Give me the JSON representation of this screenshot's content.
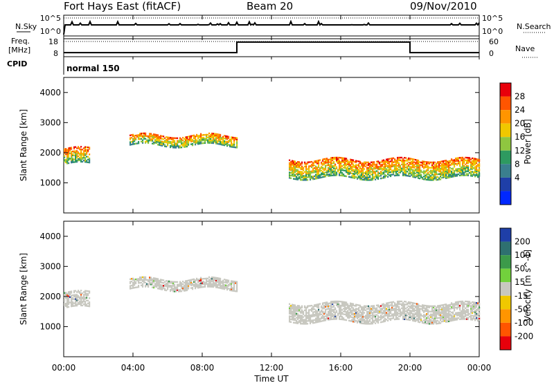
{
  "header": {
    "station": "Fort Hays East (fitACF)",
    "beam": "Beam 20",
    "date": "09/Nov/2010"
  },
  "noise_panel": {
    "left_label": "N.Sky",
    "right_label": "N.Search",
    "left_ticks": [
      "10^5",
      "10^0"
    ],
    "right_ticks": [
      "10^5",
      "10^0"
    ]
  },
  "freq_panel": {
    "left_label_1": "Freq.",
    "left_label_2": "[MHz]",
    "left_ticks": [
      "18",
      "8"
    ],
    "right_label": "Nave",
    "right_ticks": [
      "60",
      "0"
    ],
    "freq_steps": [
      {
        "t": 0,
        "mhz": 10.7
      },
      {
        "t": 10,
        "mhz": 17.6
      },
      {
        "t": 20,
        "mhz": 10.7
      },
      {
        "t": 24,
        "mhz": 10.7
      }
    ]
  },
  "cpid": {
    "label": "CPID",
    "value": "normal 150"
  },
  "chart_data": [
    {
      "type": "heatmap",
      "title": "",
      "ylabel": "Slant Range [km]",
      "xlabel": "Time UT",
      "ylim": [
        0,
        4500
      ],
      "yticks": [
        "4000",
        "3000",
        "2000",
        "1000"
      ],
      "xticks": [
        "00:00",
        "04:00",
        "08:00",
        "12:00",
        "16:00",
        "20:00",
        "00:00"
      ],
      "colorbar": {
        "label": "Power [dB]",
        "ticks": [
          "28",
          "24",
          "20",
          "16",
          "12",
          "8",
          "4"
        ],
        "colors": [
          "#e8000b",
          "#ff5500",
          "#ff9500",
          "#f0c800",
          "#8fc640",
          "#2e9a60",
          "#3a7f8e",
          "#1f3fa8",
          "#0028ff"
        ]
      },
      "echo_bands": [
        {
          "t": [
            0.0,
            1.5
          ],
          "center_km": 1900,
          "width_km": 500
        },
        {
          "t": [
            3.8,
            10.0
          ],
          "center_km": 2450,
          "width_km": 350
        },
        {
          "t": [
            13.0,
            24.0
          ],
          "center_km": 1500,
          "width_km": 600
        }
      ]
    },
    {
      "type": "heatmap",
      "title": "",
      "ylabel": "Slant Range [km]",
      "xlabel": "Time UT",
      "ylim": [
        0,
        4500
      ],
      "yticks": [
        "4000",
        "3000",
        "2000",
        "1000"
      ],
      "xticks": [
        "00:00",
        "04:00",
        "08:00",
        "12:00",
        "16:00",
        "20:00",
        "00:00"
      ],
      "colorbar": {
        "label": "Velocity [m s^-1]",
        "ticks": [
          "200",
          "100",
          "50",
          "15",
          "-15",
          "-50",
          "-100",
          "-200"
        ],
        "colors": [
          "#1f3fa8",
          "#2e7070",
          "#3c9a4a",
          "#72d13c",
          "#c8c8c0",
          "#f0c800",
          "#ff9500",
          "#ff5500",
          "#e8000b"
        ]
      },
      "ground_scatter_color": "#c8c8c0"
    }
  ],
  "x_axis_label": "Time UT"
}
